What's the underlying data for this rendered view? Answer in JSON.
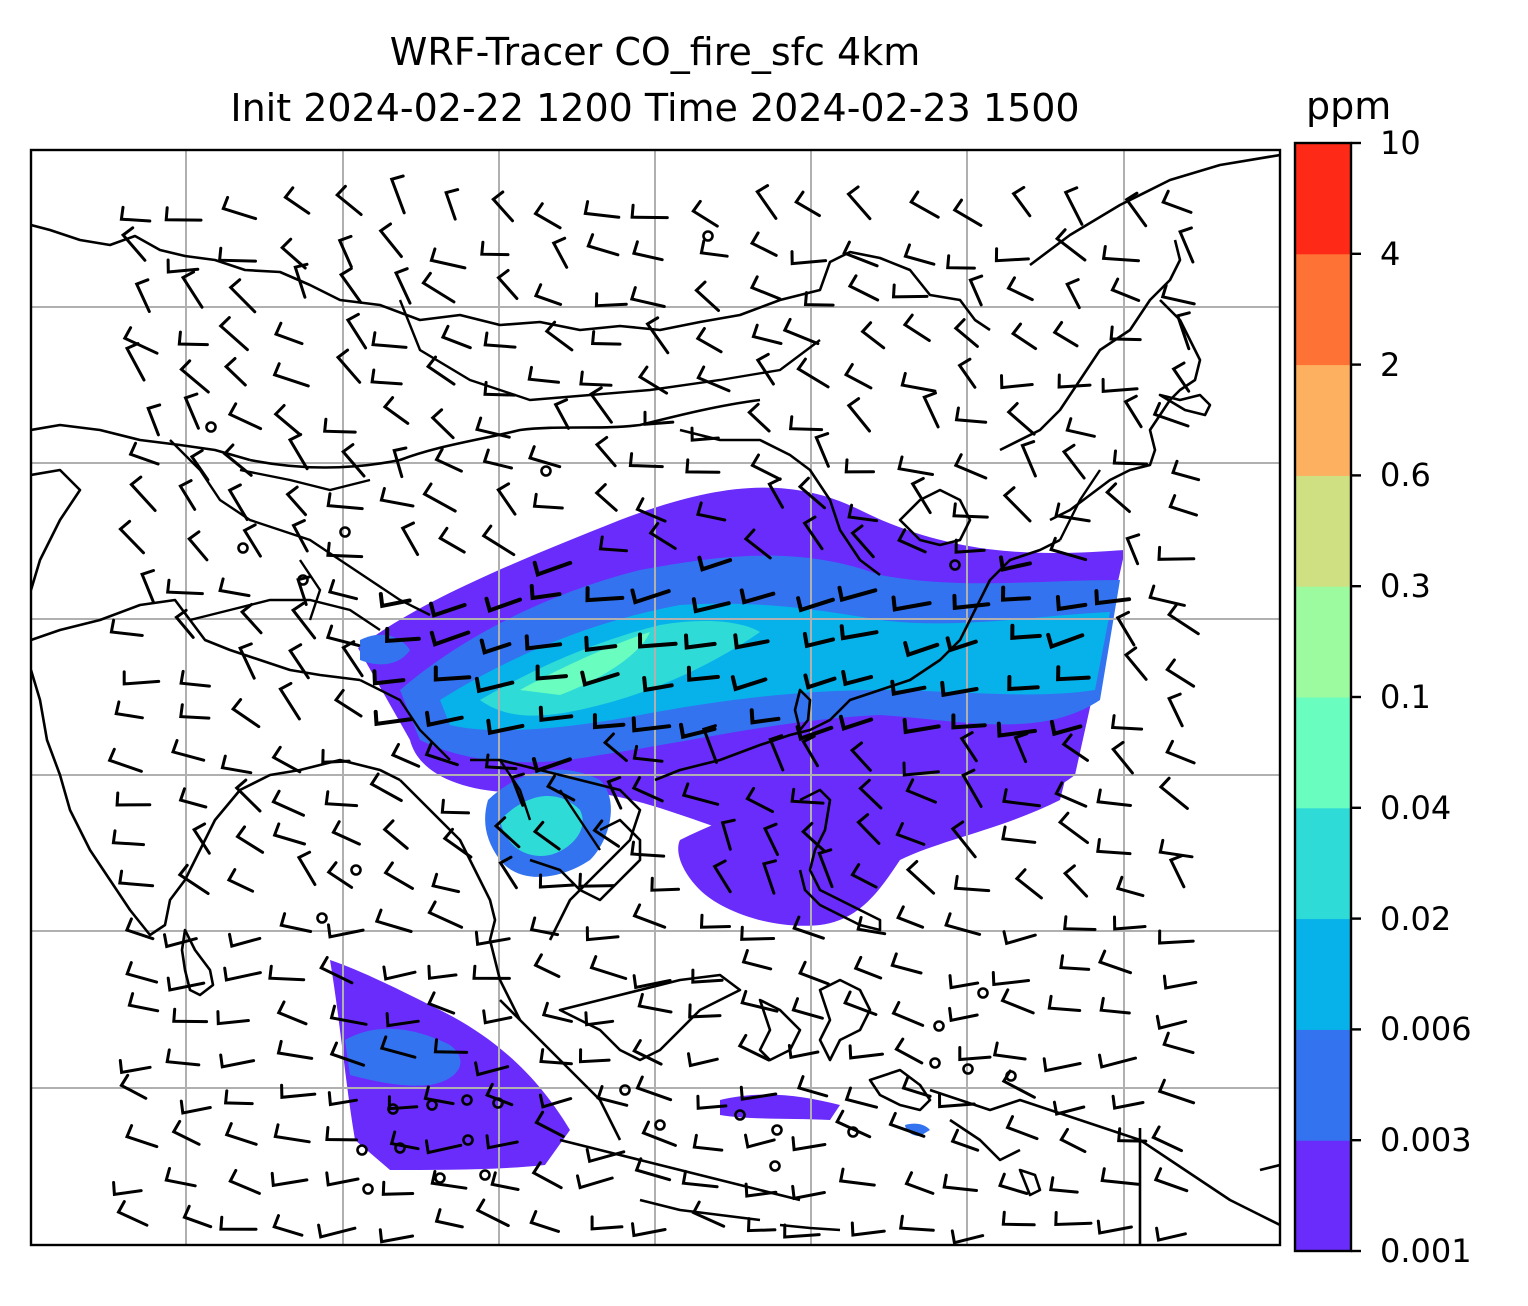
{
  "title_line1": "WRF-Tracer CO_fire_sfc 4km",
  "title_line2": "Init 2024-02-22 1200 Time 2024-02-23 1500",
  "colorbar": {
    "unit": "ppm",
    "levels": [
      "0.001",
      "0.003",
      "0.006",
      "0.02",
      "0.04",
      "0.1",
      "0.3",
      "0.6",
      "2",
      "4",
      "10"
    ],
    "colors": [
      "#6a2cfa",
      "#3373f0",
      "#07b2ea",
      "#2fdbd6",
      "#6afdc0",
      "#9cfb9e",
      "#cfe083",
      "#fdb05f",
      "#fe7335",
      "#fe2917"
    ]
  },
  "map": {
    "projection": "lat-lon with 6x7 gridlines",
    "features": [
      "coastlines",
      "country borders",
      "wind barbs",
      "CO fire tracer shading"
    ]
  }
}
